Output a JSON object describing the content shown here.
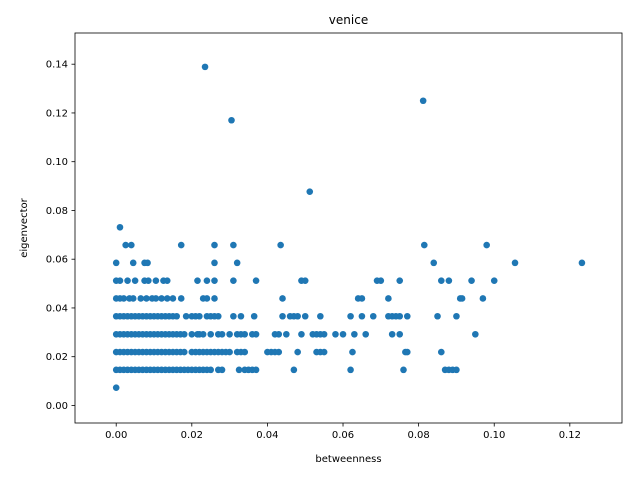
{
  "chart_data": {
    "type": "scatter",
    "title": "venice",
    "xlabel": "betweenness",
    "ylabel": "eigenvector",
    "xlim": [
      -0.0109,
      0.1338
    ],
    "ylim": [
      -0.0072,
      0.1528
    ],
    "xticks": [
      "0.00",
      "0.02",
      "0.04",
      "0.06",
      "0.08",
      "0.10",
      "0.12"
    ],
    "yticks": [
      "0.00",
      "0.02",
      "0.04",
      "0.06",
      "0.08",
      "0.10",
      "0.12",
      "0.14"
    ],
    "grid": false,
    "legend": "none",
    "color": "#1f77b4",
    "points": [
      [
        0.0,
        0.0073
      ],
      [
        0.0,
        0.0146
      ],
      [
        0.0,
        0.0219
      ],
      [
        0.0,
        0.0292
      ],
      [
        0.0,
        0.0366
      ],
      [
        0.0,
        0.0439
      ],
      [
        0.0,
        0.0512
      ],
      [
        0.0,
        0.0585
      ],
      [
        0.001,
        0.0731
      ],
      [
        0.001,
        0.0146
      ],
      [
        0.001,
        0.0219
      ],
      [
        0.001,
        0.0292
      ],
      [
        0.001,
        0.0366
      ],
      [
        0.001,
        0.0439
      ],
      [
        0.001,
        0.0512
      ],
      [
        0.002,
        0.0146
      ],
      [
        0.002,
        0.0219
      ],
      [
        0.002,
        0.0292
      ],
      [
        0.002,
        0.0366
      ],
      [
        0.002,
        0.0439
      ],
      [
        0.0025,
        0.0658
      ],
      [
        0.003,
        0.0146
      ],
      [
        0.003,
        0.0219
      ],
      [
        0.003,
        0.0292
      ],
      [
        0.003,
        0.0366
      ],
      [
        0.003,
        0.0512
      ],
      [
        0.0035,
        0.0439
      ],
      [
        0.004,
        0.0658
      ],
      [
        0.004,
        0.0146
      ],
      [
        0.004,
        0.0219
      ],
      [
        0.004,
        0.0292
      ],
      [
        0.004,
        0.0366
      ],
      [
        0.0045,
        0.0439
      ],
      [
        0.0045,
        0.0585
      ],
      [
        0.005,
        0.0146
      ],
      [
        0.005,
        0.0219
      ],
      [
        0.005,
        0.0292
      ],
      [
        0.005,
        0.0366
      ],
      [
        0.005,
        0.0512
      ],
      [
        0.006,
        0.0146
      ],
      [
        0.006,
        0.0219
      ],
      [
        0.006,
        0.0292
      ],
      [
        0.006,
        0.0366
      ],
      [
        0.0065,
        0.0439
      ],
      [
        0.007,
        0.0146
      ],
      [
        0.007,
        0.0219
      ],
      [
        0.007,
        0.0292
      ],
      [
        0.007,
        0.0366
      ],
      [
        0.0075,
        0.0585
      ],
      [
        0.0075,
        0.0512
      ],
      [
        0.008,
        0.0146
      ],
      [
        0.008,
        0.0219
      ],
      [
        0.008,
        0.0292
      ],
      [
        0.008,
        0.0366
      ],
      [
        0.008,
        0.0439
      ],
      [
        0.0083,
        0.0585
      ],
      [
        0.0085,
        0.0512
      ],
      [
        0.009,
        0.0146
      ],
      [
        0.009,
        0.0219
      ],
      [
        0.009,
        0.0292
      ],
      [
        0.009,
        0.0366
      ],
      [
        0.0095,
        0.0439
      ],
      [
        0.01,
        0.0146
      ],
      [
        0.01,
        0.0219
      ],
      [
        0.01,
        0.0292
      ],
      [
        0.01,
        0.0366
      ],
      [
        0.0105,
        0.0512
      ],
      [
        0.0105,
        0.0439
      ],
      [
        0.011,
        0.0146
      ],
      [
        0.011,
        0.0219
      ],
      [
        0.011,
        0.0292
      ],
      [
        0.011,
        0.0366
      ],
      [
        0.012,
        0.0146
      ],
      [
        0.012,
        0.0219
      ],
      [
        0.012,
        0.0292
      ],
      [
        0.012,
        0.0366
      ],
      [
        0.012,
        0.0439
      ],
      [
        0.0125,
        0.0512
      ],
      [
        0.013,
        0.0146
      ],
      [
        0.013,
        0.0219
      ],
      [
        0.013,
        0.0292
      ],
      [
        0.013,
        0.0366
      ],
      [
        0.0135,
        0.0512
      ],
      [
        0.0135,
        0.0439
      ],
      [
        0.014,
        0.0146
      ],
      [
        0.014,
        0.0219
      ],
      [
        0.014,
        0.0292
      ],
      [
        0.014,
        0.0366
      ],
      [
        0.015,
        0.0146
      ],
      [
        0.015,
        0.0219
      ],
      [
        0.015,
        0.0292
      ],
      [
        0.015,
        0.0366
      ],
      [
        0.015,
        0.0439
      ],
      [
        0.016,
        0.0146
      ],
      [
        0.016,
        0.0219
      ],
      [
        0.016,
        0.0292
      ],
      [
        0.016,
        0.0366
      ],
      [
        0.017,
        0.0146
      ],
      [
        0.017,
        0.0219
      ],
      [
        0.017,
        0.0292
      ],
      [
        0.0172,
        0.0658
      ],
      [
        0.0172,
        0.0439
      ],
      [
        0.018,
        0.0146
      ],
      [
        0.018,
        0.0219
      ],
      [
        0.018,
        0.0292
      ],
      [
        0.0185,
        0.0366
      ],
      [
        0.019,
        0.0146
      ],
      [
        0.02,
        0.0146
      ],
      [
        0.02,
        0.0219
      ],
      [
        0.02,
        0.0292
      ],
      [
        0.02,
        0.0366
      ],
      [
        0.021,
        0.0146
      ],
      [
        0.021,
        0.0219
      ],
      [
        0.021,
        0.0366
      ],
      [
        0.0215,
        0.0512
      ],
      [
        0.0215,
        0.0292
      ],
      [
        0.022,
        0.0146
      ],
      [
        0.022,
        0.0219
      ],
      [
        0.022,
        0.0292
      ],
      [
        0.022,
        0.0366
      ],
      [
        0.023,
        0.0146
      ],
      [
        0.023,
        0.0219
      ],
      [
        0.023,
        0.0292
      ],
      [
        0.023,
        0.0439
      ],
      [
        0.0235,
        0.1389
      ],
      [
        0.024,
        0.0146
      ],
      [
        0.024,
        0.0219
      ],
      [
        0.024,
        0.0366
      ],
      [
        0.024,
        0.0439
      ],
      [
        0.024,
        0.0512
      ],
      [
        0.025,
        0.0146
      ],
      [
        0.025,
        0.0219
      ],
      [
        0.025,
        0.0292
      ],
      [
        0.025,
        0.0366
      ],
      [
        0.026,
        0.0658
      ],
      [
        0.026,
        0.0585
      ],
      [
        0.026,
        0.0512
      ],
      [
        0.026,
        0.0439
      ],
      [
        0.026,
        0.0219
      ],
      [
        0.026,
        0.0366
      ],
      [
        0.027,
        0.0146
      ],
      [
        0.027,
        0.0219
      ],
      [
        0.027,
        0.0292
      ],
      [
        0.027,
        0.0366
      ],
      [
        0.028,
        0.0146
      ],
      [
        0.028,
        0.0219
      ],
      [
        0.028,
        0.0292
      ],
      [
        0.029,
        0.0219
      ],
      [
        0.03,
        0.0219
      ],
      [
        0.03,
        0.0292
      ],
      [
        0.0305,
        0.117
      ],
      [
        0.031,
        0.0658
      ],
      [
        0.031,
        0.0512
      ],
      [
        0.031,
        0.0366
      ],
      [
        0.032,
        0.0219
      ],
      [
        0.032,
        0.0292
      ],
      [
        0.032,
        0.0585
      ],
      [
        0.0325,
        0.0146
      ],
      [
        0.033,
        0.0366
      ],
      [
        0.033,
        0.0292
      ],
      [
        0.033,
        0.0219
      ],
      [
        0.034,
        0.0146
      ],
      [
        0.034,
        0.0292
      ],
      [
        0.034,
        0.0219
      ],
      [
        0.035,
        0.0146
      ],
      [
        0.036,
        0.0146
      ],
      [
        0.036,
        0.0292
      ],
      [
        0.0365,
        0.0366
      ],
      [
        0.037,
        0.0512
      ],
      [
        0.037,
        0.0146
      ],
      [
        0.037,
        0.0292
      ],
      [
        0.04,
        0.0219
      ],
      [
        0.041,
        0.0219
      ],
      [
        0.042,
        0.0219
      ],
      [
        0.042,
        0.0292
      ],
      [
        0.043,
        0.0219
      ],
      [
        0.043,
        0.0292
      ],
      [
        0.0435,
        0.0658
      ],
      [
        0.044,
        0.0439
      ],
      [
        0.044,
        0.0366
      ],
      [
        0.045,
        0.0292
      ],
      [
        0.046,
        0.0366
      ],
      [
        0.047,
        0.0146
      ],
      [
        0.047,
        0.0366
      ],
      [
        0.048,
        0.0219
      ],
      [
        0.048,
        0.0366
      ],
      [
        0.049,
        0.0512
      ],
      [
        0.049,
        0.0292
      ],
      [
        0.05,
        0.0512
      ],
      [
        0.05,
        0.0366
      ],
      [
        0.0512,
        0.0877
      ],
      [
        0.052,
        0.0292
      ],
      [
        0.053,
        0.0292
      ],
      [
        0.053,
        0.0219
      ],
      [
        0.054,
        0.0366
      ],
      [
        0.054,
        0.0292
      ],
      [
        0.054,
        0.0219
      ],
      [
        0.055,
        0.0219
      ],
      [
        0.055,
        0.0292
      ],
      [
        0.058,
        0.0292
      ],
      [
        0.06,
        0.0292
      ],
      [
        0.062,
        0.0146
      ],
      [
        0.062,
        0.0366
      ],
      [
        0.0625,
        0.0219
      ],
      [
        0.063,
        0.0292
      ],
      [
        0.064,
        0.0439
      ],
      [
        0.065,
        0.0439
      ],
      [
        0.065,
        0.0366
      ],
      [
        0.066,
        0.0292
      ],
      [
        0.068,
        0.0366
      ],
      [
        0.069,
        0.0512
      ],
      [
        0.07,
        0.0512
      ],
      [
        0.072,
        0.0439
      ],
      [
        0.072,
        0.0366
      ],
      [
        0.073,
        0.0292
      ],
      [
        0.073,
        0.0366
      ],
      [
        0.074,
        0.0366
      ],
      [
        0.075,
        0.0512
      ],
      [
        0.075,
        0.0292
      ],
      [
        0.075,
        0.0366
      ],
      [
        0.076,
        0.0146
      ],
      [
        0.077,
        0.0366
      ],
      [
        0.0765,
        0.0219
      ],
      [
        0.077,
        0.0219
      ],
      [
        0.0812,
        0.125
      ],
      [
        0.0815,
        0.0658
      ],
      [
        0.084,
        0.0585
      ],
      [
        0.085,
        0.0366
      ],
      [
        0.086,
        0.0512
      ],
      [
        0.086,
        0.0219
      ],
      [
        0.087,
        0.0146
      ],
      [
        0.088,
        0.0146
      ],
      [
        0.088,
        0.0512
      ],
      [
        0.089,
        0.0146
      ],
      [
        0.09,
        0.0146
      ],
      [
        0.09,
        0.0366
      ],
      [
        0.091,
        0.0439
      ],
      [
        0.0915,
        0.0439
      ],
      [
        0.094,
        0.0512
      ],
      [
        0.095,
        0.0292
      ],
      [
        0.097,
        0.0439
      ],
      [
        0.098,
        0.0658
      ],
      [
        0.1,
        0.0512
      ],
      [
        0.1055,
        0.0585
      ],
      [
        0.1232,
        0.0585
      ]
    ]
  }
}
